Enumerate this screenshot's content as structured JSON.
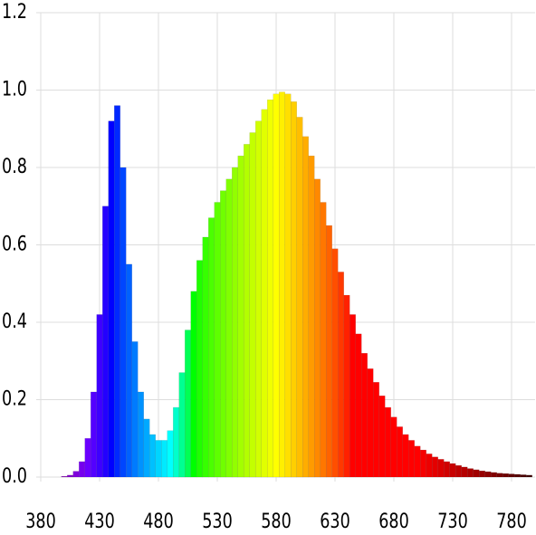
{
  "chart_data": {
    "type": "spectrum",
    "x": [
      380,
      385,
      390,
      395,
      400,
      405,
      410,
      415,
      420,
      425,
      430,
      435,
      440,
      445,
      450,
      455,
      460,
      465,
      470,
      475,
      480,
      485,
      490,
      495,
      500,
      505,
      510,
      515,
      520,
      525,
      530,
      535,
      540,
      545,
      550,
      555,
      560,
      565,
      570,
      575,
      580,
      585,
      590,
      595,
      600,
      605,
      610,
      615,
      620,
      625,
      630,
      635,
      640,
      645,
      650,
      655,
      660,
      665,
      670,
      675,
      680,
      685,
      690,
      695,
      700,
      705,
      710,
      715,
      720,
      725,
      730,
      735,
      740,
      745,
      750,
      755,
      760,
      765,
      770,
      775,
      780,
      785,
      790,
      795
    ],
    "values": [
      0,
      0,
      0,
      0,
      0.002,
      0.005,
      0.015,
      0.04,
      0.1,
      0.22,
      0.42,
      0.7,
      0.92,
      0.96,
      0.8,
      0.55,
      0.35,
      0.22,
      0.15,
      0.11,
      0.095,
      0.095,
      0.12,
      0.18,
      0.27,
      0.38,
      0.48,
      0.56,
      0.62,
      0.67,
      0.71,
      0.74,
      0.77,
      0.8,
      0.83,
      0.86,
      0.89,
      0.92,
      0.95,
      0.975,
      0.99,
      0.995,
      0.99,
      0.97,
      0.93,
      0.88,
      0.83,
      0.77,
      0.71,
      0.65,
      0.59,
      0.53,
      0.47,
      0.42,
      0.37,
      0.32,
      0.28,
      0.245,
      0.21,
      0.18,
      0.155,
      0.13,
      0.11,
      0.095,
      0.08,
      0.07,
      0.06,
      0.052,
      0.046,
      0.04,
      0.035,
      0.03,
      0.026,
      0.022,
      0.019,
      0.016,
      0.014,
      0.012,
      0.01,
      0.009,
      0.008,
      0.007,
      0.006,
      0.005
    ],
    "xlim": [
      380,
      800
    ],
    "ylim": [
      0,
      1.2
    ],
    "xticks": [
      380,
      430,
      480,
      530,
      580,
      630,
      680,
      730,
      780
    ],
    "yticks": [
      {
        "value": 0,
        "label": "0.0"
      },
      0.2,
      0.4,
      0.6,
      0.8,
      {
        "value": 1,
        "label": "1.0"
      },
      1.2
    ],
    "grid": true
  }
}
